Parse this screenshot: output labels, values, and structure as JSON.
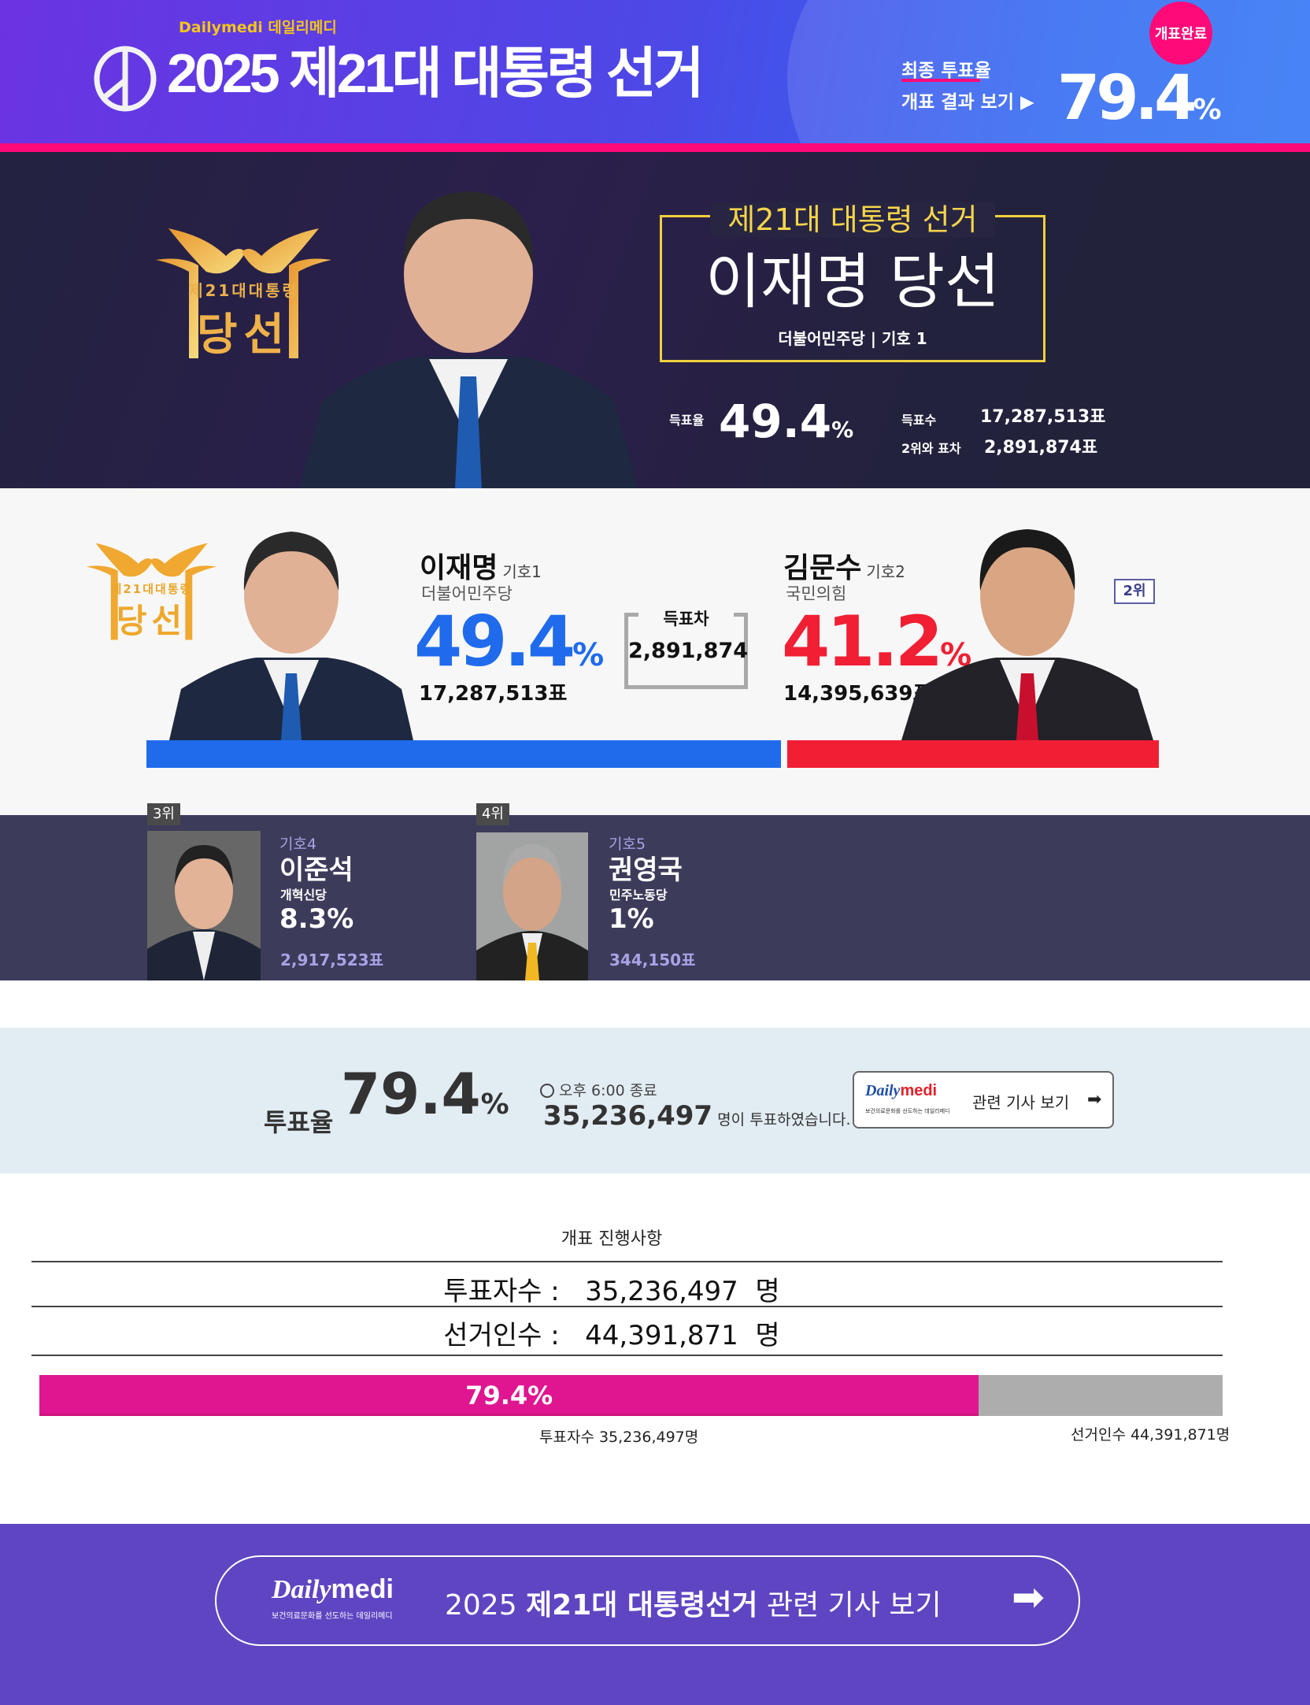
{
  "header": {
    "brand": "Dailymedi 데일리메디",
    "title": "2025 제21대 대통령 선거",
    "final_turnout_label": "최종 투표율",
    "result_link": "개표 결과 보기 ▶",
    "turnout_value": "79.4",
    "turnout_unit": "%",
    "done_badge": "개표완료",
    "colors": {
      "accent": "#ff0a78",
      "gradient_start": "#6b33e2",
      "gradient_end": "#2f74f4"
    }
  },
  "winner": {
    "emblem_small": "제21대대통령",
    "emblem_big": "당선",
    "box_title": "제21대 대통령 선거",
    "headline": "이재명 당선",
    "party_line": "더불어민주당 | 기호 1",
    "rate_label": "득표율",
    "rate_value": "49.4",
    "rate_unit": "%",
    "votes_label": "득표수",
    "votes_value": "17,287,513표",
    "margin_label": "2위와 표차",
    "margin_value": "2,891,874표"
  },
  "compare": {
    "emblem_small": "제21대대통령",
    "emblem_big": "당선",
    "first": {
      "name": "이재명",
      "number": "기호1",
      "party": "더불어민주당",
      "pct": "49.4",
      "unit": "%",
      "votes": "17,287,513표",
      "color": "#1f6bec"
    },
    "diff_label": "득표차",
    "diff_value": "2,891,874",
    "second": {
      "name": "김문수",
      "number": "기호2",
      "party": "국민의힘",
      "pct": "41.2",
      "unit": "%",
      "votes": "14,395,639표",
      "color": "#f01f34",
      "rank": "2위"
    }
  },
  "others": [
    {
      "rank": "3위",
      "number": "기호4",
      "name": "이준석",
      "party": "개혁신당",
      "pct": "8.3%",
      "votes": "2,917,523표"
    },
    {
      "rank": "4위",
      "number": "기호5",
      "name": "권영국",
      "party": "민주노동당",
      "pct": "1%",
      "votes": "344,150표"
    }
  ],
  "turnout": {
    "label": "투표율",
    "value": "79.4",
    "unit": "%",
    "time": "오후 6:00 종료",
    "count": "35,236,497",
    "count_suffix": "명이 투표하였습니다.",
    "btn_logo_a": "Daily",
    "btn_logo_b": "medi",
    "btn_logo_sub": "보건의료문화를 선도하는 데일리메디",
    "btn_label": "관련 기사 보기"
  },
  "progress": {
    "title": "개표 진행사항",
    "voters_label": "투표자수 :",
    "voters_value": "35,236,497",
    "electorate_label": "선거인수 :",
    "electorate_value": "44,391,871",
    "unit": "명",
    "percent": 79.4,
    "percent_label": "79.4%",
    "voters_foot": "투표자수 35,236,497명",
    "electorate_foot": "선거인수 44,391,871명"
  },
  "footer": {
    "logo_a": "Daily",
    "logo_b": "medi",
    "logo_sub": "보건의료문화를 선도하는 데일리메디",
    "link_year": "2025 ",
    "link_bold": "제21대 대통령선거",
    "link_rest": " 관련 기사 보기"
  }
}
